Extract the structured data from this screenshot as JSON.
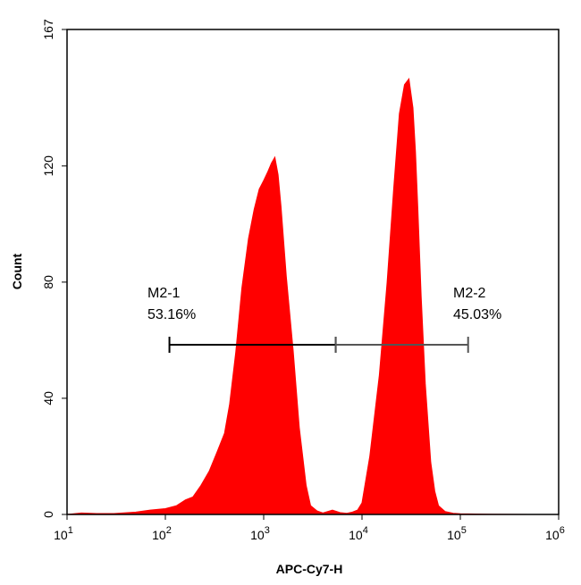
{
  "chart_data": {
    "type": "area",
    "title": "",
    "xlabel": "APC-Cy7-H",
    "ylabel": "Count",
    "x_scale": "log",
    "xlim": [
      10,
      1000000
    ],
    "ylim": [
      0,
      167
    ],
    "x_ticks": [
      {
        "value": 10,
        "base": "10",
        "exp": "1"
      },
      {
        "value": 100,
        "base": "10",
        "exp": "2"
      },
      {
        "value": 1000,
        "base": "10",
        "exp": "3"
      },
      {
        "value": 10000,
        "base": "10",
        "exp": "4"
      },
      {
        "value": 100000,
        "base": "10",
        "exp": "5"
      },
      {
        "value": 1000000,
        "base": "10",
        "exp": "6"
      }
    ],
    "y_ticks": [
      {
        "value": 0,
        "label": "0"
      },
      {
        "value": 40,
        "label": "40"
      },
      {
        "value": 80,
        "label": "80"
      },
      {
        "value": 120,
        "label": "120"
      },
      {
        "value": 167,
        "label": "167"
      }
    ],
    "series": [
      {
        "color": "#ff0000",
        "x": [
          10,
          14,
          20,
          30,
          50,
          70,
          100,
          130,
          160,
          190,
          230,
          280,
          340,
          400,
          450,
          520,
          600,
          700,
          800,
          900,
          1000,
          1100,
          1200,
          1300,
          1400,
          1500,
          1700,
          2000,
          2300,
          2700,
          3000,
          3500,
          4000,
          5000,
          6000,
          7000,
          8000,
          9000,
          10000,
          12000,
          15000,
          18000,
          21000,
          24000,
          27000,
          30000,
          33000,
          35000,
          37000,
          40000,
          44000,
          50000,
          55000,
          60000,
          70000,
          85000,
          100000,
          200000,
          500000,
          1000000
        ],
        "y": [
          0,
          0.5,
          0.3,
          0.3,
          0.8,
          1.5,
          2,
          3,
          5,
          6,
          10,
          15,
          22,
          28,
          38,
          56,
          78,
          95,
          105,
          112,
          115,
          118,
          121,
          123,
          117,
          106,
          82,
          56,
          30,
          10,
          3,
          1.2,
          0.5,
          1.5,
          0.6,
          0.4,
          0.8,
          1.5,
          4,
          20,
          48,
          80,
          112,
          138,
          148,
          150,
          140,
          125,
          105,
          75,
          45,
          18,
          8,
          3,
          1,
          0.4,
          0.2,
          0.1,
          0,
          0
        ]
      }
    ],
    "annotations": [
      {
        "name": "M2-1",
        "percent": "53.16%",
        "x_start": 110,
        "x_end": 5400
      },
      {
        "name": "M2-2",
        "percent": "45.03%",
        "x_start": 5400,
        "x_end": 120000
      }
    ]
  }
}
